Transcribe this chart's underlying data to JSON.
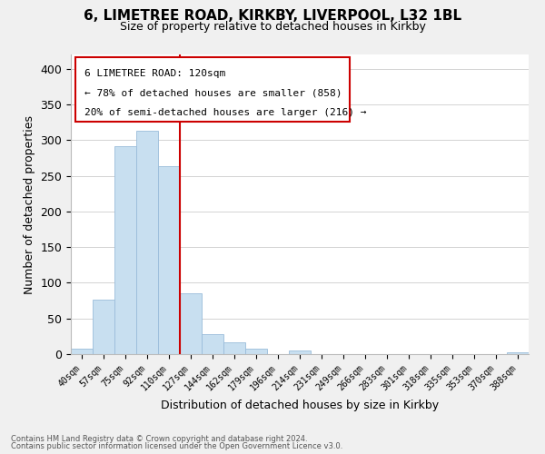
{
  "title": "6, LIMETREE ROAD, KIRKBY, LIVERPOOL, L32 1BL",
  "subtitle": "Size of property relative to detached houses in Kirkby",
  "xlabel": "Distribution of detached houses by size in Kirkby",
  "ylabel": "Number of detached properties",
  "bin_labels": [
    "40sqm",
    "57sqm",
    "75sqm",
    "92sqm",
    "110sqm",
    "127sqm",
    "144sqm",
    "162sqm",
    "179sqm",
    "196sqm",
    "214sqm",
    "231sqm",
    "249sqm",
    "266sqm",
    "283sqm",
    "301sqm",
    "318sqm",
    "335sqm",
    "353sqm",
    "370sqm",
    "388sqm"
  ],
  "bar_heights": [
    8,
    77,
    291,
    313,
    263,
    85,
    28,
    16,
    8,
    0,
    5,
    0,
    0,
    0,
    0,
    0,
    0,
    0,
    0,
    0,
    2
  ],
  "bar_color": "#c8dff0",
  "bar_edge_color": "#9abcda",
  "vline_color": "#cc0000",
  "ylim": [
    0,
    420
  ],
  "yticks": [
    0,
    50,
    100,
    150,
    200,
    250,
    300,
    350,
    400
  ],
  "annotation_title": "6 LIMETREE ROAD: 120sqm",
  "annotation_line1": "← 78% of detached houses are smaller (858)",
  "annotation_line2": "20% of semi-detached houses are larger (216) →",
  "footer_line1": "Contains HM Land Registry data © Crown copyright and database right 2024.",
  "footer_line2": "Contains public sector information licensed under the Open Government Licence v3.0.",
  "background_color": "#f0f0f0",
  "plot_bg_color": "#ffffff"
}
